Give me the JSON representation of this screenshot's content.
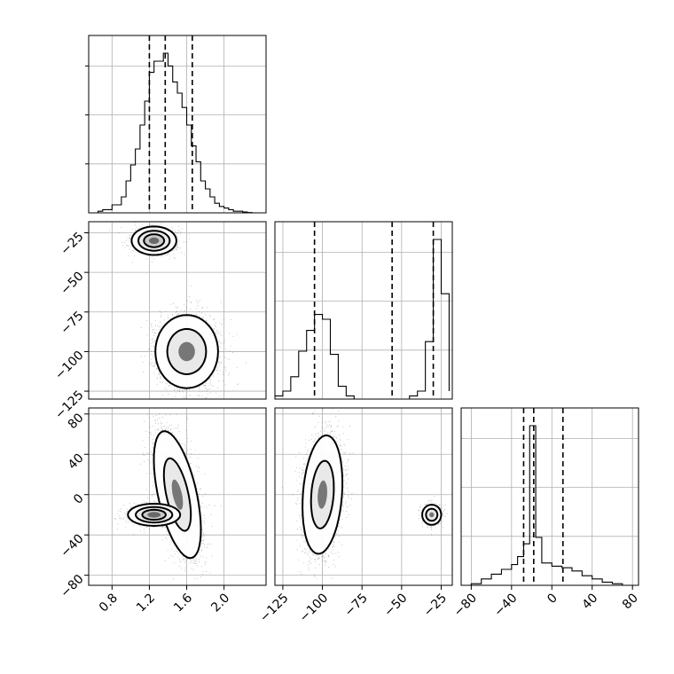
{
  "chart_data": {
    "type": "corner",
    "grid": true,
    "params": [
      {
        "range": [
          0.55,
          2.45
        ],
        "ticks": [
          0.8,
          1.2,
          1.6,
          2.0
        ],
        "tick_labels": [
          "0.8",
          "1.2",
          "1.6",
          "2.0"
        ],
        "quantiles": [
          1.2,
          1.37,
          1.66
        ]
      },
      {
        "range": [
          -130,
          -18
        ],
        "ticks": [
          -125,
          -100,
          -75,
          -50,
          -25
        ],
        "tick_labels": [
          "−125",
          "−100",
          "−75",
          "−50",
          "−25"
        ],
        "quantiles": [
          -105,
          -56,
          -30
        ]
      },
      {
        "range": [
          -90,
          86
        ],
        "ticks": [
          -80,
          -40,
          0,
          40,
          80
        ],
        "tick_labels": [
          "−80",
          "−40",
          "0",
          "40",
          "80"
        ],
        "quantiles": [
          -28,
          -18,
          11
        ]
      }
    ],
    "histograms": [
      {
        "param": 0,
        "bin_edges": [
          0.6,
          0.65,
          0.7,
          0.75,
          0.8,
          0.85,
          0.9,
          0.95,
          1.0,
          1.05,
          1.1,
          1.15,
          1.2,
          1.25,
          1.3,
          1.35,
          1.4,
          1.45,
          1.5,
          1.55,
          1.6,
          1.65,
          1.7,
          1.75,
          1.8,
          1.85,
          1.9,
          1.95,
          2.0,
          2.05,
          2.1,
          2.15,
          2.2,
          2.25,
          2.3
        ],
        "counts": [
          0,
          0.01,
          0.02,
          0.02,
          0.05,
          0.05,
          0.1,
          0.2,
          0.3,
          0.4,
          0.55,
          0.7,
          0.88,
          0.95,
          0.95,
          1.0,
          0.92,
          0.82,
          0.75,
          0.66,
          0.55,
          0.42,
          0.32,
          0.2,
          0.15,
          0.1,
          0.06,
          0.04,
          0.03,
          0.02,
          0.01,
          0.01,
          0.005,
          0.002
        ]
      },
      {
        "param": 1,
        "bin_edges": [
          -130,
          -125,
          -120,
          -115,
          -110,
          -105,
          -100,
          -95,
          -90,
          -85,
          -80,
          -75,
          -70,
          -65,
          -60,
          -55,
          -50,
          -45,
          -40,
          -35,
          -30,
          -25,
          -20
        ],
        "counts": [
          0.02,
          0.05,
          0.14,
          0.3,
          0.43,
          0.53,
          0.5,
          0.28,
          0.08,
          0.02,
          0,
          0,
          0,
          0,
          0,
          0,
          0,
          0.02,
          0.05,
          0.36,
          1.0,
          0.66,
          0.05
        ]
      },
      {
        "param": 2,
        "bin_edges": [
          -90,
          -80,
          -70,
          -60,
          -50,
          -40,
          -34,
          -28,
          -22,
          -16,
          -10,
          0,
          10,
          20,
          30,
          40,
          50,
          60,
          70
        ],
        "counts": [
          0,
          0.01,
          0.04,
          0.07,
          0.1,
          0.13,
          0.18,
          0.26,
          1.0,
          0.3,
          0.14,
          0.12,
          0.11,
          0.09,
          0.06,
          0.04,
          0.02,
          0.01
        ]
      }
    ],
    "scatter_panels": [
      {
        "x": 0,
        "y": 1,
        "clusters": [
          {
            "cx": 1.25,
            "cy": -30,
            "sx": 0.12,
            "sy": 4.5,
            "rho": 0,
            "count": 900,
            "levels": [
              2,
              1.4,
              0.9
            ],
            "core_sigma": 0.45
          },
          {
            "cx": 1.6,
            "cy": -100,
            "sx": 0.16,
            "sy": 11,
            "rho": 0,
            "count": 2600,
            "levels": [
              2.1,
              1.3
            ],
            "core_sigma": 0.55
          }
        ]
      },
      {
        "x": 0,
        "y": 2,
        "clusters": [
          {
            "cx": 1.5,
            "cy": 0,
            "sx": 0.12,
            "sy": 30,
            "rho": -0.55,
            "count": 3000,
            "levels": [
              2.1,
              1.2
            ],
            "core_sigma": 0.5
          },
          {
            "cx": 1.25,
            "cy": -20,
            "sx": 0.14,
            "sy": 5.5,
            "rho": 0,
            "count": 800,
            "levels": [
              2,
              1.4,
              0.9
            ],
            "core_sigma": 0.5
          }
        ]
      },
      {
        "x": 1,
        "y": 2,
        "clusters": [
          {
            "cx": -100,
            "cy": 0,
            "sx": 6,
            "sy": 28,
            "rho": 0.2,
            "count": 3000,
            "levels": [
              2.1,
              1.2
            ],
            "core_sigma": 0.5
          },
          {
            "cx": -31,
            "cy": -20,
            "sx": 3,
            "sy": 5,
            "rho": 0,
            "count": 800,
            "levels": [
              2,
              1.2
            ],
            "core_sigma": 0.5
          }
        ]
      }
    ]
  }
}
